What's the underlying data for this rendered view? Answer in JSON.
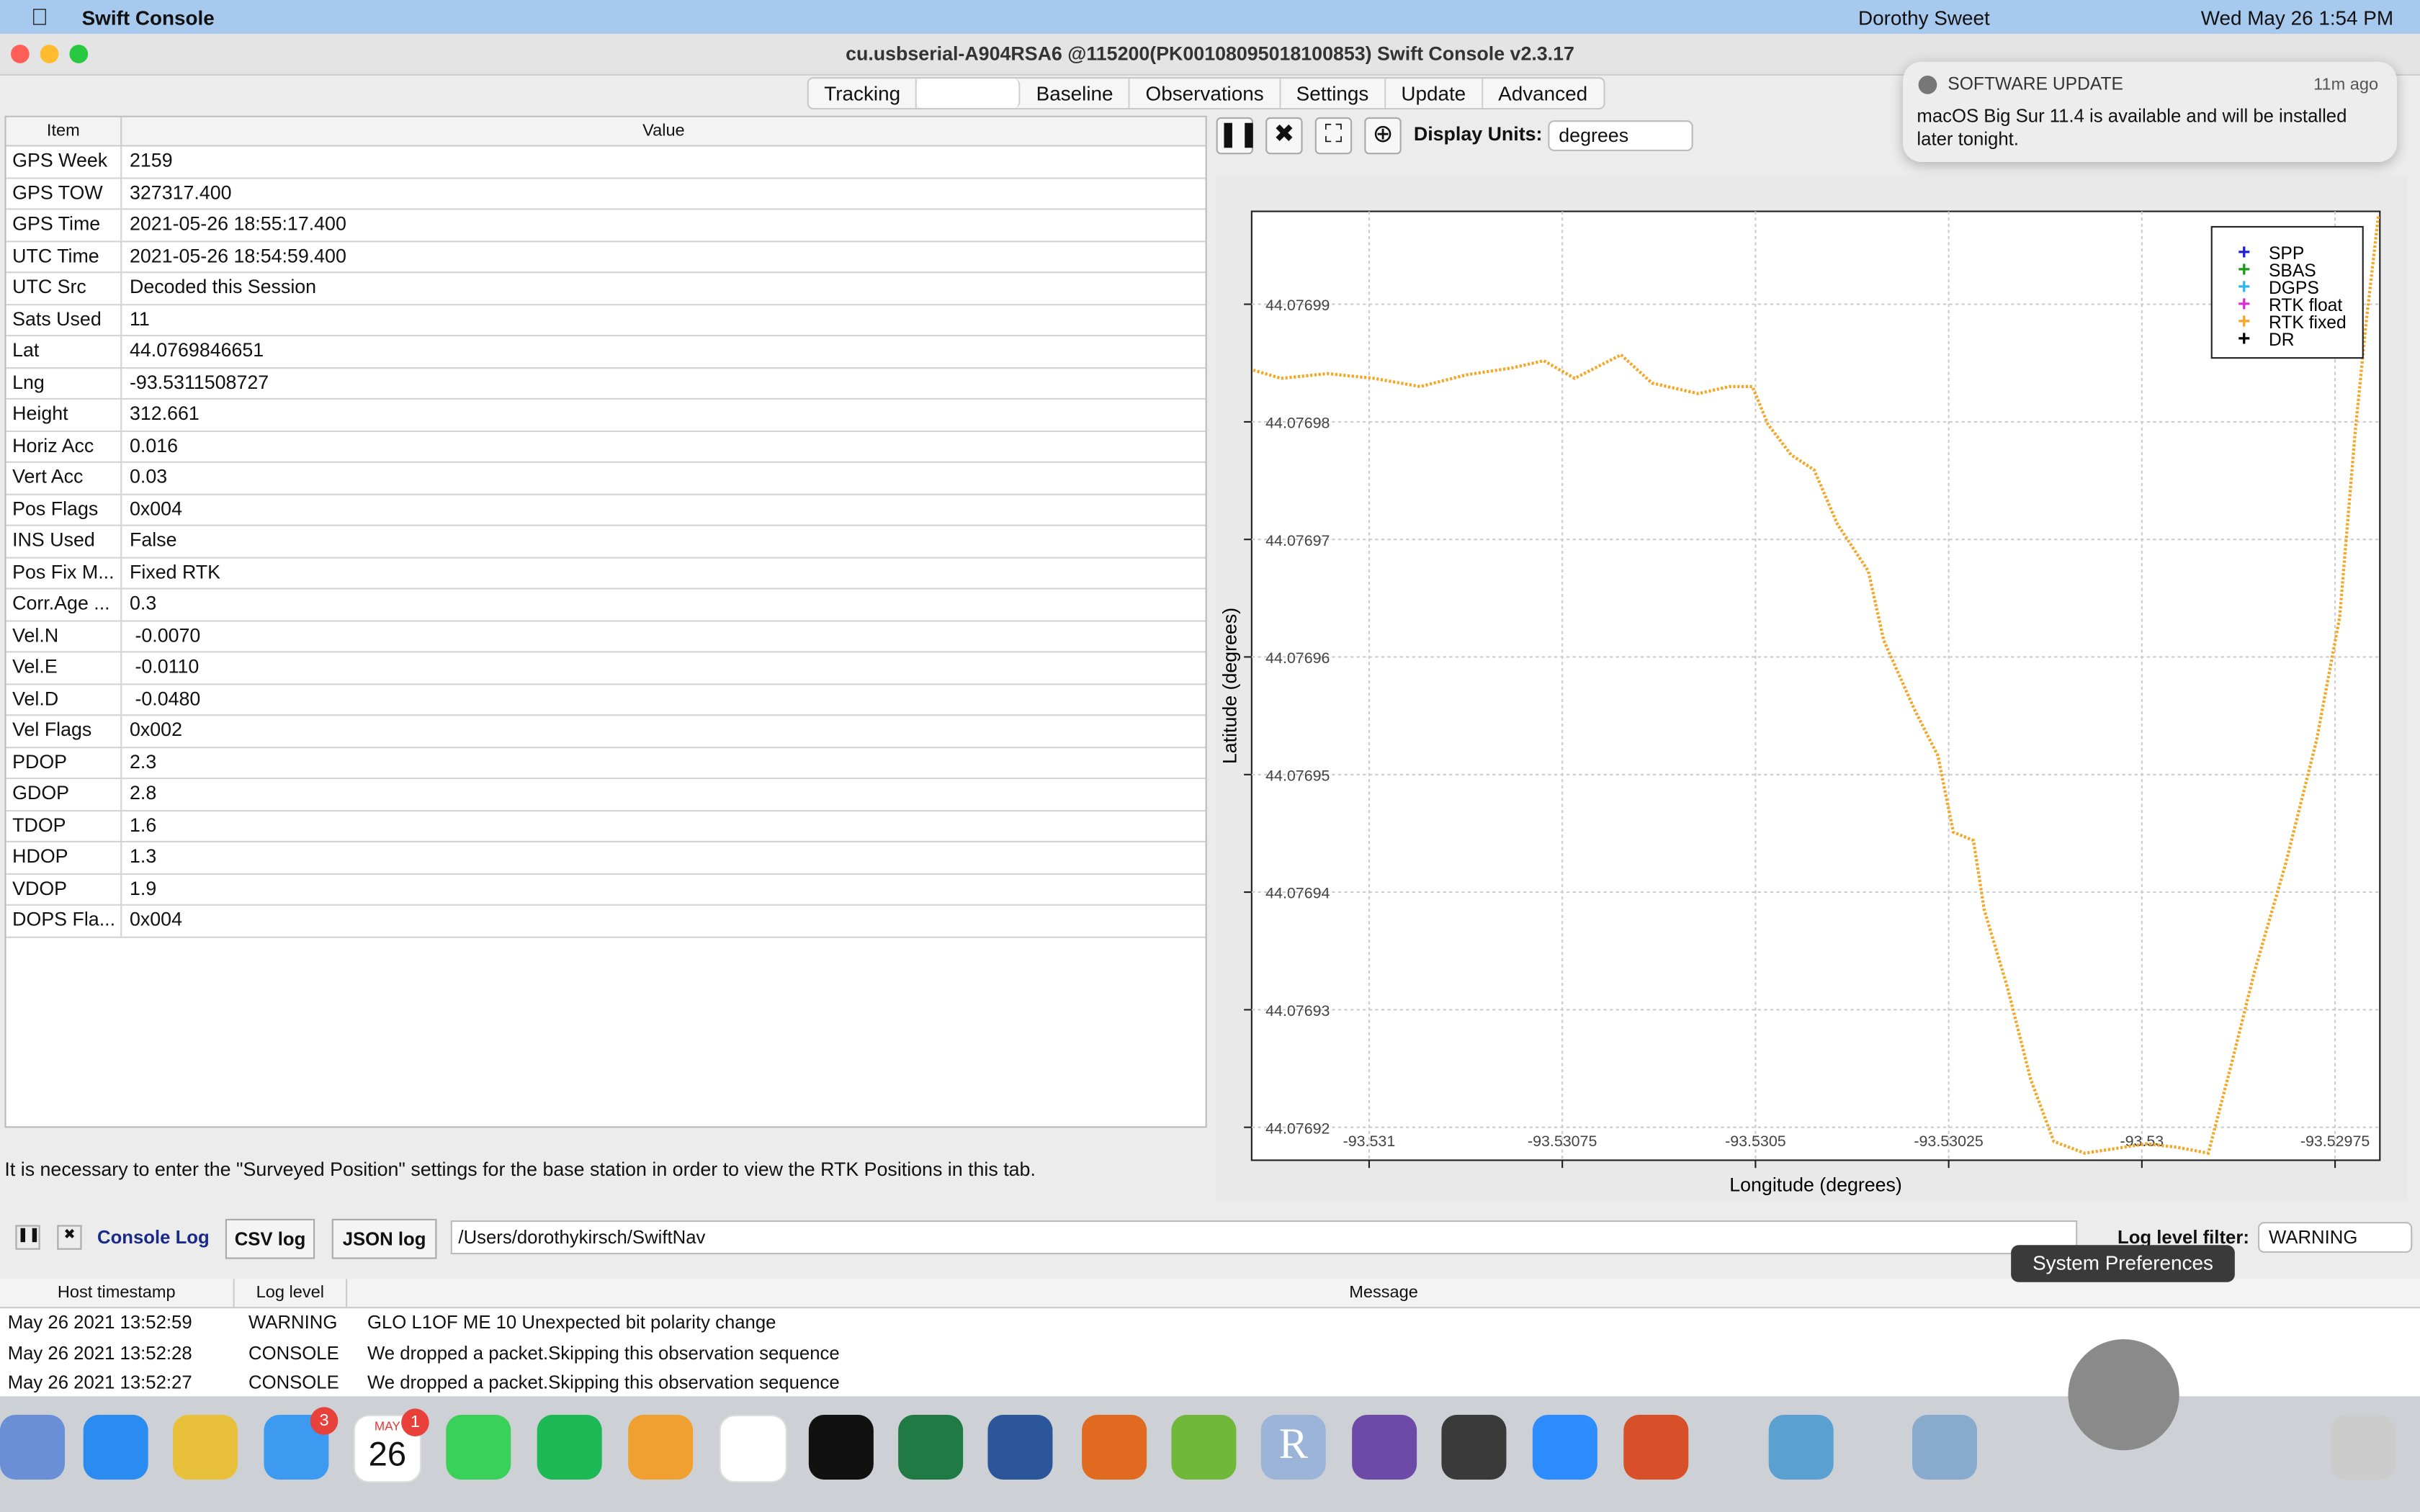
{
  "menu_bar": {
    "app": "Swift Console",
    "user": "Dorothy Sweet",
    "clock": "Wed May 26  1:54 PM"
  },
  "window": {
    "title": "cu.usbserial-A904RSA6 @115200(PK00108095018100853) Swift Console v2.3.17",
    "tabs": [
      "Tracking",
      "Baseline",
      "Observations",
      "Settings",
      "Update",
      "Advanced"
    ]
  },
  "table": {
    "header": [
      "Item",
      "Value"
    ],
    "rows": [
      [
        "GPS Week",
        "2159"
      ],
      [
        "GPS TOW",
        "327317.400"
      ],
      [
        "GPS Time",
        "2021-05-26 18:55:17.400"
      ],
      [
        "UTC Time",
        "2021-05-26 18:54:59.400"
      ],
      [
        "UTC Src",
        "Decoded this Session"
      ],
      [
        "Sats Used",
        "11"
      ],
      [
        "Lat",
        "44.0769846651"
      ],
      [
        "Lng",
        "-93.5311508727"
      ],
      [
        "Height",
        "312.661"
      ],
      [
        "Horiz Acc",
        "0.016"
      ],
      [
        "Vert Acc",
        "0.03"
      ],
      [
        "Pos Flags",
        "0x004"
      ],
      [
        "INS Used",
        "False"
      ],
      [
        "Pos Fix M...",
        "Fixed RTK"
      ],
      [
        "Corr.Age ...",
        "0.3"
      ],
      [
        "Vel.N",
        " -0.0070"
      ],
      [
        "Vel.E",
        " -0.0110"
      ],
      [
        "Vel.D",
        " -0.0480"
      ],
      [
        "Vel Flags",
        "0x002"
      ],
      [
        "PDOP",
        "2.3"
      ],
      [
        "GDOP",
        "2.8"
      ],
      [
        "TDOP",
        "1.6"
      ],
      [
        "HDOP",
        "1.3"
      ],
      [
        "VDOP",
        "1.9"
      ],
      [
        "DOPS Fla...",
        "0x004"
      ]
    ]
  },
  "note": "It is necessary to enter the \"Surveyed Position\" settings for the base station in order to view the RTK Positions in this tab.",
  "toolbar": {
    "units_label": "Display Units:",
    "units": "degrees"
  },
  "chart_data": {
    "type": "line",
    "x_label": "Longitude (degrees)",
    "y_label": "Latitude (degrees)",
    "xlim": [
      -93.531152,
      -93.529692
    ],
    "ylim": [
      44.0769172,
      44.0769979
    ],
    "xticks": [
      -93.531,
      -93.53075,
      -93.5305,
      -93.53025,
      -93.53,
      -93.52975
    ],
    "yticks": [
      44.07692,
      44.07693,
      44.07694,
      44.07695,
      44.07696,
      44.07697,
      44.07698,
      44.07699
    ],
    "grid": true,
    "legend_position": "upper right",
    "legend": [
      {
        "name": "SPP",
        "color": "#1f1fd6"
      },
      {
        "name": "SBAS",
        "color": "#1a9c1a"
      },
      {
        "name": "DGPS",
        "color": "#2fb6ee"
      },
      {
        "name": "RTK float",
        "color": "#d62fd6"
      },
      {
        "name": "RTK fixed",
        "color": "#f5a623"
      },
      {
        "name": "DR",
        "color": "#000000"
      }
    ],
    "series": [
      {
        "name": "RTK fixed",
        "color": "#f5a623",
        "x": [
          -93.53115,
          -93.531114,
          -93.531054,
          -93.530994,
          -93.530934,
          -93.530874,
          -93.530814,
          -93.530774,
          -93.530734,
          -93.530674,
          -93.530634,
          -93.530574,
          -93.530534,
          -93.530504,
          -93.530484,
          -93.530454,
          -93.530424,
          -93.530394,
          -93.530354,
          -93.530334,
          -93.530294,
          -93.530264,
          -93.530244,
          -93.530218,
          -93.530204,
          -93.530174,
          -93.530144,
          -93.530114,
          -93.530074,
          -93.530034,
          -93.529994,
          -93.529954,
          -93.529914,
          -93.529884,
          -93.529854,
          -93.529814,
          -93.529774,
          -93.529744,
          -93.529724,
          -93.52971,
          -93.529694
        ],
        "values": [
          44.0769844,
          44.0769837,
          44.0769841,
          44.0769837,
          44.076983,
          44.076984,
          44.0769846,
          44.0769852,
          44.0769837,
          44.0769857,
          44.0769833,
          44.0769824,
          44.076983,
          44.076983,
          44.0769798,
          44.0769772,
          44.0769759,
          44.0769713,
          44.0769673,
          44.0769614,
          44.0769555,
          44.0769516,
          44.0769451,
          44.0769444,
          44.0769385,
          44.0769319,
          44.0769241,
          44.0769188,
          44.0769178,
          44.0769182,
          44.0769186,
          44.0769183,
          44.0769178,
          44.0769254,
          44.0769333,
          44.0769424,
          44.0769529,
          44.0769634,
          44.0769791,
          44.0769883,
          44.0769975
        ]
      }
    ]
  },
  "console": {
    "tabs": [
      "Console Log",
      "CSV log",
      "JSON log"
    ],
    "path": "/Users/dorothykirsch/SwiftNav",
    "filter_label": "Log level filter:",
    "filter": "WARNING",
    "header": [
      "Host timestamp",
      "Log level",
      "Message"
    ],
    "rows": [
      [
        "May 26 2021 13:52:59",
        "WARNING",
        "GLO L1OF ME 10 Unexpected bit polarity change"
      ],
      [
        "May 26 2021 13:52:28",
        "CONSOLE",
        "We dropped a packet.Skipping this observation sequence"
      ],
      [
        "May 26 2021 13:52:27",
        "CONSOLE",
        "We dropped a packet.Skipping this observation sequence"
      ]
    ]
  },
  "notification": {
    "title": "SOFTWARE UPDATE",
    "time": "11m ago",
    "body": "macOS Big Sur 11.4 is available and will be installed later tonight."
  },
  "dock": {
    "tooltip": "System Preferences",
    "mail_badge": "3",
    "calendar_badge": "1",
    "calendar_month": "MAY",
    "calendar_day": "26",
    "r_icon": "R"
  }
}
